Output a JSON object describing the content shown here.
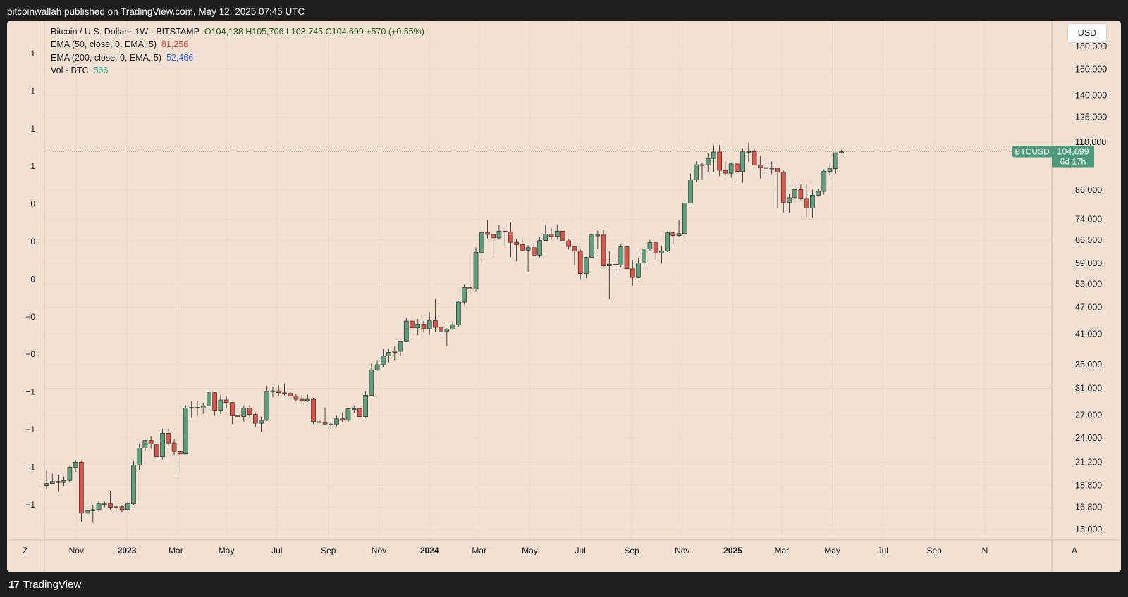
{
  "header": {
    "publish_text": "bitcoinwallah published on TradingView.com, May 12, 2025 07:45 UTC"
  },
  "footer": {
    "brand": "TradingView",
    "logo_glyph": "17"
  },
  "legend": {
    "symbol_line": "Bitcoin / U.S. Dollar · 1W · BITSTAMP",
    "ohlc": "O104,138  H105,706  L103,745  C104,699  +570 (+0.55%)",
    "ema50_label": "EMA (50, close, 0, EMA, 5)",
    "ema50_value": "81,256",
    "ema200_label": "EMA (200, close, 0, EMA, 5)",
    "ema200_value": "52,466",
    "vol_label": "Vol · BTC",
    "vol_value": "566"
  },
  "controls": {
    "currency_button": "USD",
    "z_button": "Z",
    "a_button": "A"
  },
  "price_tag": {
    "symbol": "BTCUSD",
    "price": "104,699",
    "countdown": "6d 17h"
  },
  "colors": {
    "up": "#5e9f7e",
    "down": "#d9574a",
    "background": "#f2e1d2",
    "tag": "#4f9a7d"
  },
  "chart_data": {
    "type": "candlestick",
    "title": "Bitcoin / U.S. Dollar · 1W · BITSTAMP",
    "y_scale": "log",
    "ylim": [
      14200,
      205000
    ],
    "y_ticks": [
      15000,
      16800,
      18800,
      21200,
      24000,
      27000,
      31000,
      35000,
      41000,
      47000,
      53000,
      59000,
      66500,
      74000,
      86000,
      110000,
      125000,
      140000,
      160000,
      180000
    ],
    "left_axis_labels": [
      "1",
      "1",
      "1",
      "1",
      "0",
      "0",
      "0",
      "−0",
      "−0",
      "−1",
      "−1",
      "−1",
      "−1"
    ],
    "x_labels": [
      "Nov",
      "2023",
      "Mar",
      "May",
      "Jul",
      "Sep",
      "Nov",
      "2024",
      "Mar",
      "May",
      "Jul",
      "Sep",
      "Nov",
      "2025",
      "Mar",
      "May",
      "Jul",
      "Sep",
      "N"
    ],
    "last_price": 104699,
    "candles": [
      {
        "date": "2022-09-26",
        "o": 18800,
        "h": 20300,
        "l": 18500,
        "c": 19000
      },
      {
        "date": "2022-10-03",
        "o": 19000,
        "h": 20000,
        "l": 18900,
        "c": 19200
      },
      {
        "date": "2022-10-10",
        "o": 19200,
        "h": 19900,
        "l": 18200,
        "c": 19100
      },
      {
        "date": "2022-10-17",
        "o": 19100,
        "h": 19700,
        "l": 18700,
        "c": 19300
      },
      {
        "date": "2022-10-24",
        "o": 19300,
        "h": 20800,
        "l": 19200,
        "c": 20600
      },
      {
        "date": "2022-10-31",
        "o": 20600,
        "h": 21400,
        "l": 20100,
        "c": 21200
      },
      {
        "date": "2022-11-07",
        "o": 21200,
        "h": 21300,
        "l": 15600,
        "c": 16300
      },
      {
        "date": "2022-11-14",
        "o": 16300,
        "h": 17100,
        "l": 15900,
        "c": 16500
      },
      {
        "date": "2022-11-21",
        "o": 16500,
        "h": 17000,
        "l": 15500,
        "c": 16600
      },
      {
        "date": "2022-11-28",
        "o": 16600,
        "h": 17400,
        "l": 16400,
        "c": 17100
      },
      {
        "date": "2022-12-05",
        "o": 17100,
        "h": 17300,
        "l": 16800,
        "c": 17100
      },
      {
        "date": "2022-12-12",
        "o": 17100,
        "h": 18300,
        "l": 16600,
        "c": 16800
      },
      {
        "date": "2022-12-19",
        "o": 16800,
        "h": 17000,
        "l": 16400,
        "c": 16850
      },
      {
        "date": "2022-12-26",
        "o": 16850,
        "h": 17000,
        "l": 16400,
        "c": 16600
      },
      {
        "date": "2023-01-02",
        "o": 16600,
        "h": 17300,
        "l": 16500,
        "c": 17100
      },
      {
        "date": "2023-01-09",
        "o": 17100,
        "h": 21300,
        "l": 17000,
        "c": 20900
      },
      {
        "date": "2023-01-16",
        "o": 20900,
        "h": 23300,
        "l": 20400,
        "c": 22800
      },
      {
        "date": "2023-01-23",
        "o": 22800,
        "h": 23800,
        "l": 22400,
        "c": 23700
      },
      {
        "date": "2023-01-30",
        "o": 23700,
        "h": 24200,
        "l": 22700,
        "c": 23300
      },
      {
        "date": "2023-02-06",
        "o": 23300,
        "h": 23500,
        "l": 21400,
        "c": 21800
      },
      {
        "date": "2023-02-13",
        "o": 21800,
        "h": 25200,
        "l": 21500,
        "c": 24600
      },
      {
        "date": "2023-02-20",
        "o": 24600,
        "h": 25100,
        "l": 23000,
        "c": 23400
      },
      {
        "date": "2023-02-27",
        "o": 23400,
        "h": 23900,
        "l": 21900,
        "c": 22400
      },
      {
        "date": "2023-03-06",
        "o": 22400,
        "h": 22500,
        "l": 19600,
        "c": 22100
      },
      {
        "date": "2023-03-13",
        "o": 22100,
        "h": 28400,
        "l": 22100,
        "c": 28000
      },
      {
        "date": "2023-03-20",
        "o": 28000,
        "h": 29000,
        "l": 26600,
        "c": 28100
      },
      {
        "date": "2023-03-27",
        "o": 28100,
        "h": 29100,
        "l": 26800,
        "c": 28000
      },
      {
        "date": "2023-04-03",
        "o": 28000,
        "h": 28800,
        "l": 27200,
        "c": 28300
      },
      {
        "date": "2023-04-10",
        "o": 28300,
        "h": 30900,
        "l": 28200,
        "c": 30300
      },
      {
        "date": "2023-04-17",
        "o": 30300,
        "h": 30400,
        "l": 26900,
        "c": 27600
      },
      {
        "date": "2023-04-24",
        "o": 27600,
        "h": 30000,
        "l": 27200,
        "c": 29200
      },
      {
        "date": "2023-05-01",
        "o": 29200,
        "h": 29800,
        "l": 28000,
        "c": 28800
      },
      {
        "date": "2023-05-08",
        "o": 28800,
        "h": 28900,
        "l": 25800,
        "c": 26900
      },
      {
        "date": "2023-05-15",
        "o": 26900,
        "h": 27500,
        "l": 26400,
        "c": 26800
      },
      {
        "date": "2023-05-22",
        "o": 26800,
        "h": 28400,
        "l": 26100,
        "c": 28000
      },
      {
        "date": "2023-05-29",
        "o": 28000,
        "h": 28400,
        "l": 26600,
        "c": 27100
      },
      {
        "date": "2023-06-05",
        "o": 27100,
        "h": 27400,
        "l": 25400,
        "c": 25900
      },
      {
        "date": "2023-06-12",
        "o": 25900,
        "h": 26800,
        "l": 24800,
        "c": 26300
      },
      {
        "date": "2023-06-19",
        "o": 26300,
        "h": 31400,
        "l": 26200,
        "c": 30500
      },
      {
        "date": "2023-06-26",
        "o": 30500,
        "h": 31300,
        "l": 29600,
        "c": 30600
      },
      {
        "date": "2023-07-03",
        "o": 30600,
        "h": 31500,
        "l": 29800,
        "c": 30300
      },
      {
        "date": "2023-07-10",
        "o": 30300,
        "h": 31800,
        "l": 29900,
        "c": 30200
      },
      {
        "date": "2023-07-17",
        "o": 30200,
        "h": 30400,
        "l": 29500,
        "c": 29800
      },
      {
        "date": "2023-07-24",
        "o": 29800,
        "h": 30100,
        "l": 29000,
        "c": 29300
      },
      {
        "date": "2023-07-31",
        "o": 29300,
        "h": 29900,
        "l": 28600,
        "c": 29100
      },
      {
        "date": "2023-08-07",
        "o": 29100,
        "h": 30000,
        "l": 28900,
        "c": 29300
      },
      {
        "date": "2023-08-14",
        "o": 29300,
        "h": 29500,
        "l": 25800,
        "c": 26100
      },
      {
        "date": "2023-08-21",
        "o": 26100,
        "h": 26300,
        "l": 25800,
        "c": 26000
      },
      {
        "date": "2023-08-28",
        "o": 26000,
        "h": 28100,
        "l": 25700,
        "c": 25800
      },
      {
        "date": "2023-09-04",
        "o": 25800,
        "h": 26100,
        "l": 25100,
        "c": 25800
      },
      {
        "date": "2023-09-11",
        "o": 25800,
        "h": 26900,
        "l": 25500,
        "c": 26500
      },
      {
        "date": "2023-09-18",
        "o": 26500,
        "h": 27400,
        "l": 26000,
        "c": 26300
      },
      {
        "date": "2023-09-25",
        "o": 26300,
        "h": 28000,
        "l": 26100,
        "c": 27900
      },
      {
        "date": "2023-10-02",
        "o": 27900,
        "h": 28400,
        "l": 27300,
        "c": 27900
      },
      {
        "date": "2023-10-09",
        "o": 27900,
        "h": 28000,
        "l": 26600,
        "c": 26800
      },
      {
        "date": "2023-10-16",
        "o": 26800,
        "h": 30500,
        "l": 26600,
        "c": 29900
      },
      {
        "date": "2023-10-23",
        "o": 29900,
        "h": 35200,
        "l": 29800,
        "c": 34100
      },
      {
        "date": "2023-10-30",
        "o": 34100,
        "h": 35700,
        "l": 33900,
        "c": 35000
      },
      {
        "date": "2023-11-06",
        "o": 35000,
        "h": 37900,
        "l": 34600,
        "c": 36600
      },
      {
        "date": "2023-11-13",
        "o": 36600,
        "h": 37900,
        "l": 35400,
        "c": 37300
      },
      {
        "date": "2023-11-20",
        "o": 37300,
        "h": 38400,
        "l": 35700,
        "c": 37500
      },
      {
        "date": "2023-11-27",
        "o": 37500,
        "h": 39500,
        "l": 36700,
        "c": 39400
      },
      {
        "date": "2023-12-04",
        "o": 39400,
        "h": 44500,
        "l": 39300,
        "c": 43800
      },
      {
        "date": "2023-12-11",
        "o": 43800,
        "h": 44000,
        "l": 40600,
        "c": 42300
      },
      {
        "date": "2023-12-18",
        "o": 42300,
        "h": 44300,
        "l": 40700,
        "c": 43100
      },
      {
        "date": "2023-12-25",
        "o": 43100,
        "h": 43800,
        "l": 41300,
        "c": 42100
      },
      {
        "date": "2024-01-01",
        "o": 42100,
        "h": 45900,
        "l": 40800,
        "c": 43900
      },
      {
        "date": "2024-01-08",
        "o": 43900,
        "h": 49000,
        "l": 41500,
        "c": 42400
      },
      {
        "date": "2024-01-15",
        "o": 42400,
        "h": 43200,
        "l": 40600,
        "c": 41600
      },
      {
        "date": "2024-01-22",
        "o": 41600,
        "h": 42200,
        "l": 38500,
        "c": 42000
      },
      {
        "date": "2024-01-29",
        "o": 42000,
        "h": 43800,
        "l": 41800,
        "c": 43000
      },
      {
        "date": "2024-02-05",
        "o": 43000,
        "h": 48600,
        "l": 42600,
        "c": 48300
      },
      {
        "date": "2024-02-12",
        "o": 48300,
        "h": 52800,
        "l": 47700,
        "c": 52100
      },
      {
        "date": "2024-02-19",
        "o": 52100,
        "h": 52900,
        "l": 50600,
        "c": 51700
      },
      {
        "date": "2024-02-26",
        "o": 51700,
        "h": 64000,
        "l": 50900,
        "c": 62400
      },
      {
        "date": "2024-03-04",
        "o": 62400,
        "h": 70100,
        "l": 59000,
        "c": 69000
      },
      {
        "date": "2024-03-11",
        "o": 69000,
        "h": 73800,
        "l": 67000,
        "c": 68400
      },
      {
        "date": "2024-03-18",
        "o": 68400,
        "h": 68500,
        "l": 60800,
        "c": 67200
      },
      {
        "date": "2024-03-25",
        "o": 67200,
        "h": 71700,
        "l": 66600,
        "c": 69600
      },
      {
        "date": "2024-04-01",
        "o": 69600,
        "h": 70300,
        "l": 64500,
        "c": 69300
      },
      {
        "date": "2024-04-08",
        "o": 69300,
        "h": 72800,
        "l": 60900,
        "c": 65700
      },
      {
        "date": "2024-04-15",
        "o": 65700,
        "h": 66800,
        "l": 59600,
        "c": 64900
      },
      {
        "date": "2024-04-22",
        "o": 64900,
        "h": 67200,
        "l": 62800,
        "c": 63100
      },
      {
        "date": "2024-04-29",
        "o": 63100,
        "h": 64700,
        "l": 56500,
        "c": 63900
      },
      {
        "date": "2024-05-06",
        "o": 63900,
        "h": 65500,
        "l": 60200,
        "c": 61500
      },
      {
        "date": "2024-05-13",
        "o": 61500,
        "h": 67400,
        "l": 60800,
        "c": 66300
      },
      {
        "date": "2024-05-20",
        "o": 66300,
        "h": 71900,
        "l": 66000,
        "c": 68500
      },
      {
        "date": "2024-05-27",
        "o": 68500,
        "h": 70600,
        "l": 66600,
        "c": 67700
      },
      {
        "date": "2024-06-03",
        "o": 67700,
        "h": 71900,
        "l": 66700,
        "c": 69600
      },
      {
        "date": "2024-06-10",
        "o": 69600,
        "h": 70000,
        "l": 64900,
        "c": 66200
      },
      {
        "date": "2024-06-17",
        "o": 66200,
        "h": 66800,
        "l": 63300,
        "c": 64300
      },
      {
        "date": "2024-06-24",
        "o": 64300,
        "h": 64400,
        "l": 58500,
        "c": 62800
      },
      {
        "date": "2024-07-01",
        "o": 62800,
        "h": 63700,
        "l": 54200,
        "c": 55900
      },
      {
        "date": "2024-07-08",
        "o": 55900,
        "h": 61000,
        "l": 54600,
        "c": 60800
      },
      {
        "date": "2024-07-15",
        "o": 60800,
        "h": 68300,
        "l": 60600,
        "c": 68200
      },
      {
        "date": "2024-07-22",
        "o": 68200,
        "h": 69800,
        "l": 63500,
        "c": 68200
      },
      {
        "date": "2024-07-29",
        "o": 68200,
        "h": 70000,
        "l": 57900,
        "c": 58200
      },
      {
        "date": "2024-08-05",
        "o": 58200,
        "h": 62700,
        "l": 49000,
        "c": 58700
      },
      {
        "date": "2024-08-12",
        "o": 58700,
        "h": 61800,
        "l": 56100,
        "c": 58400
      },
      {
        "date": "2024-08-19",
        "o": 58400,
        "h": 65000,
        "l": 57800,
        "c": 64200
      },
      {
        "date": "2024-08-26",
        "o": 64200,
        "h": 64300,
        "l": 57300,
        "c": 57300
      },
      {
        "date": "2024-09-02",
        "o": 57300,
        "h": 59800,
        "l": 52500,
        "c": 54800
      },
      {
        "date": "2024-09-09",
        "o": 54800,
        "h": 60600,
        "l": 54600,
        "c": 59100
      },
      {
        "date": "2024-09-16",
        "o": 59100,
        "h": 64100,
        "l": 57600,
        "c": 63500
      },
      {
        "date": "2024-09-23",
        "o": 63500,
        "h": 66500,
        "l": 62700,
        "c": 65600
      },
      {
        "date": "2024-09-30",
        "o": 65600,
        "h": 65600,
        "l": 59800,
        "c": 62100
      },
      {
        "date": "2024-10-07",
        "o": 62100,
        "h": 64500,
        "l": 58900,
        "c": 62900
      },
      {
        "date": "2024-10-14",
        "o": 62900,
        "h": 69500,
        "l": 62500,
        "c": 69000
      },
      {
        "date": "2024-10-21",
        "o": 69000,
        "h": 69400,
        "l": 65200,
        "c": 68000
      },
      {
        "date": "2024-10-28",
        "o": 68000,
        "h": 73600,
        "l": 67500,
        "c": 68700
      },
      {
        "date": "2024-11-04",
        "o": 68700,
        "h": 81500,
        "l": 66800,
        "c": 80400
      },
      {
        "date": "2024-11-11",
        "o": 80400,
        "h": 93500,
        "l": 80200,
        "c": 90600
      },
      {
        "date": "2024-11-18",
        "o": 90600,
        "h": 99800,
        "l": 89400,
        "c": 97900
      },
      {
        "date": "2024-11-25",
        "o": 97900,
        "h": 98800,
        "l": 90800,
        "c": 97700
      },
      {
        "date": "2024-12-02",
        "o": 97700,
        "h": 103900,
        "l": 94200,
        "c": 101100
      },
      {
        "date": "2024-12-09",
        "o": 101100,
        "h": 107900,
        "l": 94300,
        "c": 104500
      },
      {
        "date": "2024-12-16",
        "o": 104500,
        "h": 108300,
        "l": 92300,
        "c": 95100
      },
      {
        "date": "2024-12-23",
        "o": 95100,
        "h": 99900,
        "l": 92500,
        "c": 93700
      },
      {
        "date": "2024-12-30",
        "o": 93700,
        "h": 98900,
        "l": 91500,
        "c": 98300
      },
      {
        "date": "2025-01-06",
        "o": 98300,
        "h": 102700,
        "l": 89200,
        "c": 94500
      },
      {
        "date": "2025-01-13",
        "o": 94500,
        "h": 106400,
        "l": 89300,
        "c": 104600
      },
      {
        "date": "2025-01-20",
        "o": 104600,
        "h": 109600,
        "l": 99500,
        "c": 104800
      },
      {
        "date": "2025-01-27",
        "o": 104800,
        "h": 106400,
        "l": 97800,
        "c": 97700
      },
      {
        "date": "2025-02-03",
        "o": 97700,
        "h": 102500,
        "l": 91200,
        "c": 96500
      },
      {
        "date": "2025-02-10",
        "o": 96500,
        "h": 98800,
        "l": 94100,
        "c": 96100
      },
      {
        "date": "2025-02-17",
        "o": 96100,
        "h": 99500,
        "l": 93300,
        "c": 96200
      },
      {
        "date": "2025-02-24",
        "o": 96200,
        "h": 96500,
        "l": 78200,
        "c": 94200
      },
      {
        "date": "2025-03-03",
        "o": 94200,
        "h": 95000,
        "l": 76600,
        "c": 80700
      },
      {
        "date": "2025-03-10",
        "o": 80700,
        "h": 84300,
        "l": 76600,
        "c": 82600
      },
      {
        "date": "2025-03-17",
        "o": 82600,
        "h": 88700,
        "l": 81100,
        "c": 86100
      },
      {
        "date": "2025-03-24",
        "o": 86100,
        "h": 88500,
        "l": 81600,
        "c": 82300
      },
      {
        "date": "2025-03-31",
        "o": 82300,
        "h": 88500,
        "l": 74500,
        "c": 78400
      },
      {
        "date": "2025-04-07",
        "o": 78400,
        "h": 86100,
        "l": 74600,
        "c": 83700
      },
      {
        "date": "2025-04-14",
        "o": 83700,
        "h": 86500,
        "l": 83100,
        "c": 85300
      },
      {
        "date": "2025-04-21",
        "o": 85300,
        "h": 95700,
        "l": 83900,
        "c": 94600
      },
      {
        "date": "2025-04-28",
        "o": 94600,
        "h": 97900,
        "l": 92800,
        "c": 95900
      },
      {
        "date": "2025-05-05",
        "o": 95900,
        "h": 104300,
        "l": 93400,
        "c": 104100
      },
      {
        "date": "2025-05-12",
        "o": 104138,
        "h": 105706,
        "l": 103745,
        "c": 104699
      }
    ]
  }
}
